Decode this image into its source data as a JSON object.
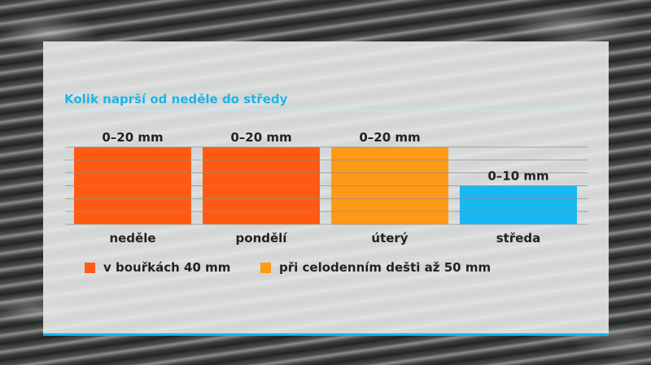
{
  "chart_data": {
    "type": "bar",
    "title": "Kolik naprší od neděle do středy",
    "categories": [
      "neděle",
      "pondělí",
      "úterý",
      "středa"
    ],
    "values": [
      20,
      20,
      20,
      10
    ],
    "value_labels": [
      "0–20 mm",
      "0–20 mm",
      "0–20 mm",
      "0–10 mm"
    ],
    "bar_colors": [
      "#ff5a14",
      "#ff5a14",
      "#ff9a18",
      "#1ab8f0"
    ],
    "ylim": [
      0,
      20
    ],
    "grid": true,
    "legend": [
      {
        "label": "v bouřkách 40 mm",
        "color": "#ff5a14"
      },
      {
        "label": "při celodenním dešti až 50 mm",
        "color": "#ff9a18"
      }
    ]
  }
}
